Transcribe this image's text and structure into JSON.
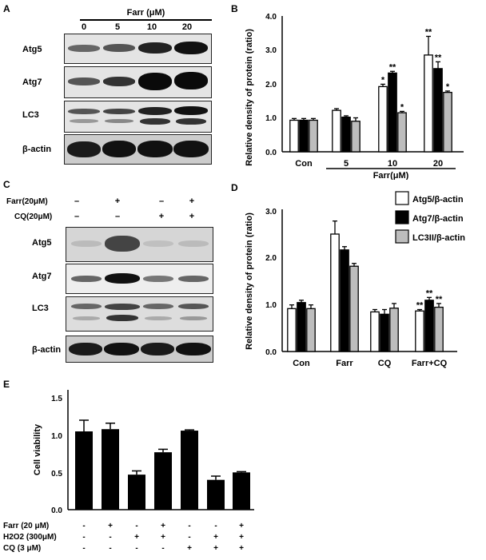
{
  "panelA": {
    "letter": "A",
    "treatment": "Farr (μM)",
    "doses": [
      "0",
      "5",
      "10",
      "20"
    ],
    "rows": [
      "Atg5",
      "Atg7",
      "LC3",
      "β-actin"
    ]
  },
  "panelB": {
    "letter": "B",
    "chart_data": {
      "type": "bar",
      "categories": [
        "Con",
        "5",
        "10",
        "20"
      ],
      "group_label": "Farr(μM)",
      "ylabel": "Relative density of protein (ratio)",
      "ylim": [
        0,
        4.0
      ],
      "yticks": [
        "0.0",
        "1.0",
        "2.0",
        "3.0",
        "4.0"
      ],
      "series": [
        {
          "values": [
            0.93,
            1.22,
            1.92,
            2.85
          ],
          "errors": [
            0.05,
            0.05,
            0.07,
            0.55
          ],
          "color": "#ffffff"
        },
        {
          "values": [
            0.93,
            1.02,
            2.32,
            2.45
          ],
          "errors": [
            0.05,
            0.04,
            0.05,
            0.2
          ],
          "color": "#000000"
        },
        {
          "values": [
            0.93,
            0.9,
            1.15,
            1.75
          ],
          "errors": [
            0.05,
            0.1,
            0.04,
            0.04
          ],
          "color": "#bdbdbd"
        }
      ],
      "annotations": [
        {
          "series": 0,
          "index": 2,
          "text": "*"
        },
        {
          "series": 1,
          "index": 2,
          "text": "**"
        },
        {
          "series": 2,
          "index": 2,
          "text": "*"
        },
        {
          "series": 0,
          "index": 3,
          "text": "**"
        },
        {
          "series": 1,
          "index": 3,
          "text": "**"
        },
        {
          "series": 2,
          "index": 3,
          "text": "*"
        }
      ]
    }
  },
  "panelC": {
    "letter": "C",
    "farr_label": "Farr(20μM)",
    "cq_label": "CQ(20μM)",
    "farr_signs": [
      "–",
      "+",
      "–",
      "+"
    ],
    "cq_signs": [
      "–",
      "–",
      "+",
      "+"
    ],
    "rows": [
      "Atg5",
      "Atg7",
      "LC3",
      "β-actin"
    ]
  },
  "panelD": {
    "letter": "D",
    "chart_data": {
      "type": "bar",
      "categories": [
        "Con",
        "Farr",
        "CQ",
        "Farr+CQ"
      ],
      "ylabel": "Relative density of protein (ratio)",
      "ylim": [
        0,
        3.0
      ],
      "yticks": [
        "0.0",
        "1.0",
        "2.0",
        "3.0"
      ],
      "legend": "top-right",
      "series": [
        {
          "name": "Atg5/β-actin",
          "values": [
            0.92,
            2.52,
            0.85,
            0.87
          ],
          "errors": [
            0.08,
            0.28,
            0.05,
            0.03
          ],
          "color": "#ffffff"
        },
        {
          "name": "Atg7/β-actin",
          "values": [
            1.05,
            2.18,
            0.8,
            1.1
          ],
          "errors": [
            0.05,
            0.07,
            0.1,
            0.06
          ],
          "color": "#000000"
        },
        {
          "name": "LC3II/β-actin",
          "values": [
            0.92,
            1.83,
            0.93,
            0.95
          ],
          "errors": [
            0.08,
            0.06,
            0.1,
            0.08
          ],
          "color": "#bdbdbd"
        }
      ],
      "annotations": [
        {
          "series": 0,
          "index": 3,
          "text": "**"
        },
        {
          "series": 1,
          "index": 3,
          "text": "**"
        },
        {
          "series": 2,
          "index": 3,
          "text": "**"
        }
      ]
    }
  },
  "panelE": {
    "letter": "E",
    "chart_data": {
      "type": "bar",
      "ylabel": "Cell viability",
      "ylim": [
        0,
        1.5
      ],
      "yticks": [
        "0.0",
        "0.5",
        "1.0",
        "1.5"
      ],
      "values": [
        1.05,
        1.08,
        0.47,
        0.77,
        1.06,
        0.4,
        0.5
      ],
      "errors": [
        0.15,
        0.08,
        0.05,
        0.04,
        0.01,
        0.05,
        0.01
      ],
      "color": "#000000",
      "conditions": [
        {
          "label": "Farr (20 μM)",
          "signs": [
            "-",
            "+",
            "-",
            "+",
            "-",
            "-",
            "+"
          ]
        },
        {
          "label": "H2O2 (300μM)",
          "signs": [
            "-",
            "-",
            "+",
            "+",
            "-",
            "+",
            "+"
          ]
        },
        {
          "label": "CQ (3 μM)",
          "signs": [
            "-",
            "-",
            "-",
            "-",
            "+",
            "+",
            "+"
          ]
        }
      ]
    }
  }
}
